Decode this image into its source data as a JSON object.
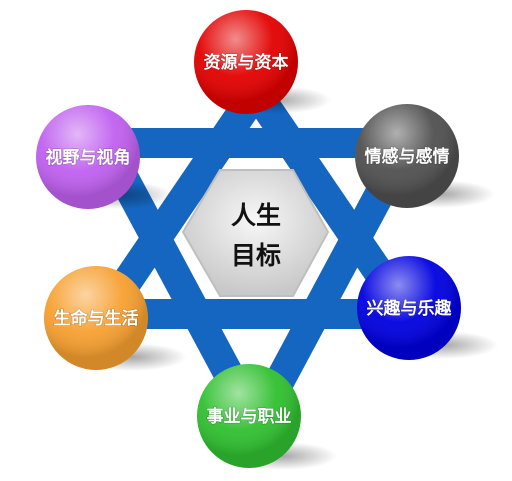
{
  "center": {
    "line1": "人生",
    "line2": "目标"
  },
  "nodes": [
    {
      "label": "资源与资本",
      "color": "#e30000"
    },
    {
      "label": "情感与感情",
      "color": "#505050"
    },
    {
      "label": "兴趣与乐趣",
      "color": "#0000e0"
    },
    {
      "label": "事业与职业",
      "color": "#30c030"
    },
    {
      "label": "生命与生活",
      "color": "#f7a030"
    },
    {
      "label": "视野与视角",
      "color": "#c060f0"
    }
  ],
  "colors": {
    "star": "#1466c0",
    "hexagon": "#d9d9d9"
  }
}
